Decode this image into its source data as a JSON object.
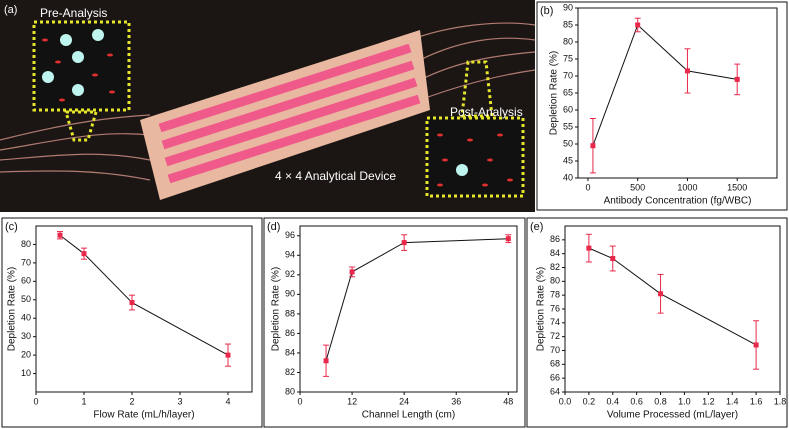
{
  "photo_panel": {
    "label": "(a)",
    "inset_before": "Pre-Analysis",
    "inset_after": "Post-Analysis",
    "caption": "4 × 4 Analytical Device"
  },
  "chart_data": [
    {
      "type": "line",
      "label": "(b)",
      "x_label": "Antibody Concentration (fg/WBC)",
      "y_label": "Depletion Rate (%)",
      "x": [
        50,
        500,
        1000,
        1500
      ],
      "values": [
        49.5,
        85,
        71.5,
        69
      ],
      "errors": [
        8,
        2,
        6.5,
        4.5
      ],
      "xlim": [
        -100,
        1900
      ],
      "xticks": [
        0,
        500,
        1000,
        1500
      ],
      "ylim": [
        40,
        90
      ],
      "yticks": [
        40,
        45,
        50,
        55,
        60,
        65,
        70,
        75,
        80,
        85,
        90
      ],
      "color": "#e8284a",
      "line_color": "#111111"
    },
    {
      "type": "line",
      "label": "(c)",
      "x_label": "Flow Rate (mL/h/layer)",
      "y_label": "Depletion Rate (%)",
      "x": [
        0.5,
        1,
        2,
        4
      ],
      "values": [
        85,
        75,
        48.5,
        20
      ],
      "errors": [
        2,
        3,
        4,
        6
      ],
      "xlim": [
        0,
        4.5
      ],
      "xticks": [
        0,
        1,
        2,
        3,
        4
      ],
      "ylim": [
        0,
        90
      ],
      "yticks": [
        10,
        20,
        30,
        40,
        50,
        60,
        70,
        80
      ],
      "color": "#e8284a",
      "line_color": "#111111"
    },
    {
      "type": "line",
      "label": "(d)",
      "x_label": "Channel Length (cm)",
      "y_label": "Depletion Rate (%)",
      "x": [
        6,
        12,
        24,
        48
      ],
      "values": [
        83.2,
        92.3,
        95.3,
        95.7
      ],
      "errors": [
        1.6,
        0.5,
        0.8,
        0.4
      ],
      "xlim": [
        0,
        50
      ],
      "xticks": [
        0,
        12,
        24,
        36,
        48
      ],
      "ylim": [
        80,
        97
      ],
      "yticks": [
        80,
        82,
        84,
        86,
        88,
        90,
        92,
        94,
        96
      ],
      "color": "#e8284a",
      "line_color": "#111111"
    },
    {
      "type": "line",
      "label": "(e)",
      "x_label": "Volume Processed (mL/layer)",
      "y_label": "Depletion Rate (%)",
      "x": [
        0.2,
        0.4,
        0.8,
        1.6
      ],
      "values": [
        84.8,
        83.3,
        78.2,
        70.8
      ],
      "errors": [
        2,
        1.8,
        2.8,
        3.5
      ],
      "xlim": [
        0,
        1.8
      ],
      "xticks": [
        {
          "value": 0,
          "label": "0.0"
        },
        0.2,
        0.4,
        0.6,
        0.8,
        {
          "value": 1,
          "label": "1.0"
        },
        1.2,
        1.4,
        1.6,
        1.8
      ],
      "ylim": [
        64,
        88
      ],
      "yticks": [
        64,
        66,
        68,
        70,
        72,
        74,
        76,
        78,
        80,
        82,
        84,
        86
      ],
      "color": "#e8284a",
      "line_color": "#111111"
    }
  ]
}
